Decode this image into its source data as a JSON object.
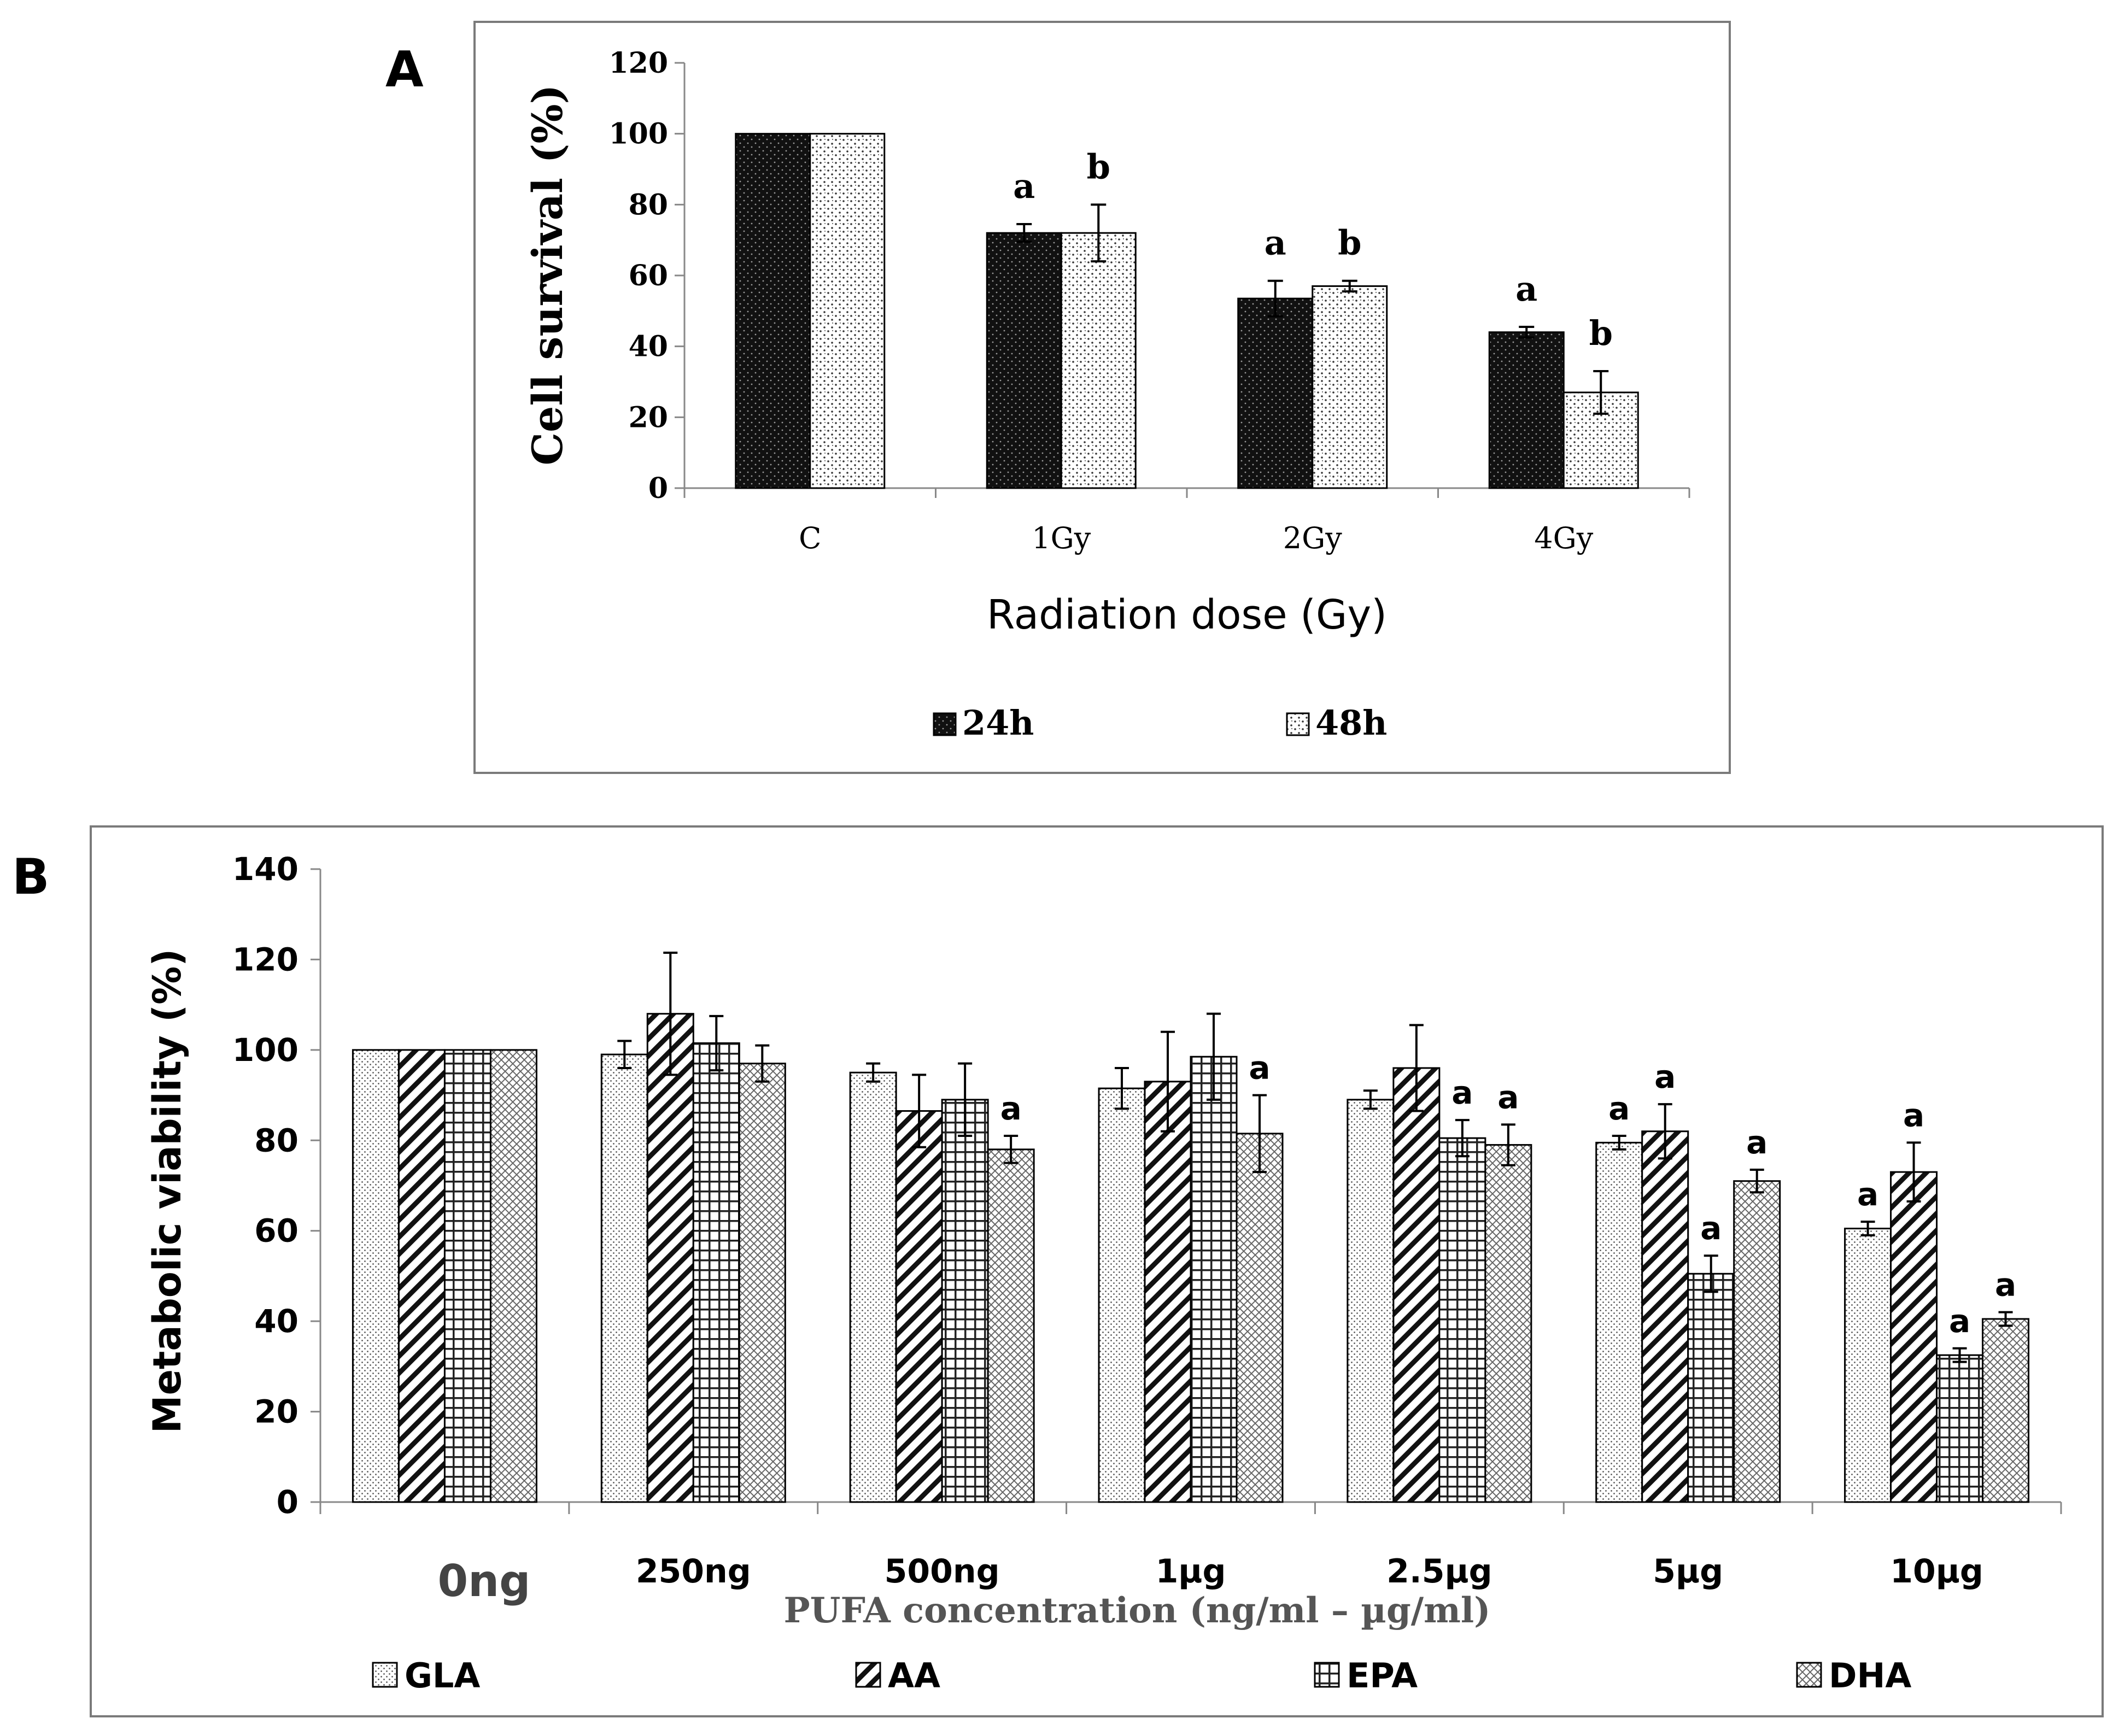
{
  "colors": {
    "dark_bar": "#111111",
    "light_bar": "#ffffff",
    "axis": "#888888",
    "frame": "#7a7a7a",
    "error": "#000000",
    "xtitle_b": "#555555"
  },
  "icons": {
    "24h": "dotted-black-swatch",
    "48h": "speckled-white-swatch",
    "GLA": "dotted-swatch",
    "AA": "diagonal-hatch-swatch",
    "EPA": "grid-swatch",
    "DHA": "crosshatch-swatch"
  },
  "chart_data": [
    {
      "panel_label": "A",
      "type": "bar",
      "title": "",
      "xlabel": "Radiation dose (Gy)",
      "ylabel": "Cell survival (%)",
      "ylim": [
        0,
        120
      ],
      "yticks": [
        "0",
        "20",
        "40",
        "60",
        "80",
        "100",
        "120"
      ],
      "categories": [
        "C",
        "1Gy",
        "2Gy",
        "4Gy"
      ],
      "legend": [
        "24h",
        "48h"
      ],
      "legend_position": "bottom",
      "grid": false,
      "series": [
        {
          "name": "24h",
          "values": [
            100,
            72,
            53.5,
            44
          ],
          "errors": [
            0,
            2.5,
            5,
            1.5
          ],
          "annotations": [
            "",
            "a",
            "a",
            "a"
          ]
        },
        {
          "name": "48h",
          "values": [
            100,
            72,
            57,
            27
          ],
          "errors": [
            0,
            8,
            1.5,
            6
          ],
          "annotations": [
            "",
            "b",
            "b",
            "b"
          ]
        }
      ]
    },
    {
      "panel_label": "B",
      "type": "bar",
      "title": "",
      "xlabel": "PUFA concentration (ng/ml – µg/ml)",
      "ylabel": "Metabolic viability (%)",
      "ylim": [
        0,
        140
      ],
      "yticks": [
        "0",
        "20",
        "40",
        "60",
        "80",
        "100",
        "120",
        "140"
      ],
      "categories": [
        "0ng",
        "250ng",
        "500ng",
        "1µg",
        "2.5µg",
        "5µg",
        "10µg"
      ],
      "legend": [
        "GLA",
        "AA",
        "EPA",
        "DHA"
      ],
      "legend_position": "bottom",
      "grid": false,
      "series": [
        {
          "name": "GLA",
          "values": [
            100,
            99,
            95,
            91.5,
            89,
            79.5,
            60.5
          ],
          "errors": [
            0,
            3,
            2,
            4.5,
            2,
            1.5,
            1.5
          ],
          "annotations": [
            "",
            "",
            "",
            "",
            "",
            "a",
            "a"
          ]
        },
        {
          "name": "AA",
          "values": [
            100,
            108,
            86.5,
            93,
            96,
            82,
            73
          ],
          "errors": [
            0,
            13.5,
            8,
            11,
            9.5,
            6,
            6.5
          ],
          "annotations": [
            "",
            "",
            "",
            "",
            "",
            "a",
            "a"
          ]
        },
        {
          "name": "EPA",
          "values": [
            100,
            101.5,
            89,
            98.5,
            80.5,
            50.5,
            32.5
          ],
          "errors": [
            0,
            6,
            8,
            9.5,
            4,
            4,
            1.5
          ],
          "annotations": [
            "",
            "",
            "",
            "",
            "a",
            "a",
            "a"
          ]
        },
        {
          "name": "DHA",
          "values": [
            100,
            97,
            78,
            81.5,
            79,
            71,
            40.5
          ],
          "errors": [
            0,
            4,
            3,
            8.5,
            4.5,
            2.5,
            1.5
          ],
          "annotations": [
            "",
            "",
            "a",
            "a",
            "a",
            "a",
            "a"
          ]
        }
      ]
    }
  ]
}
